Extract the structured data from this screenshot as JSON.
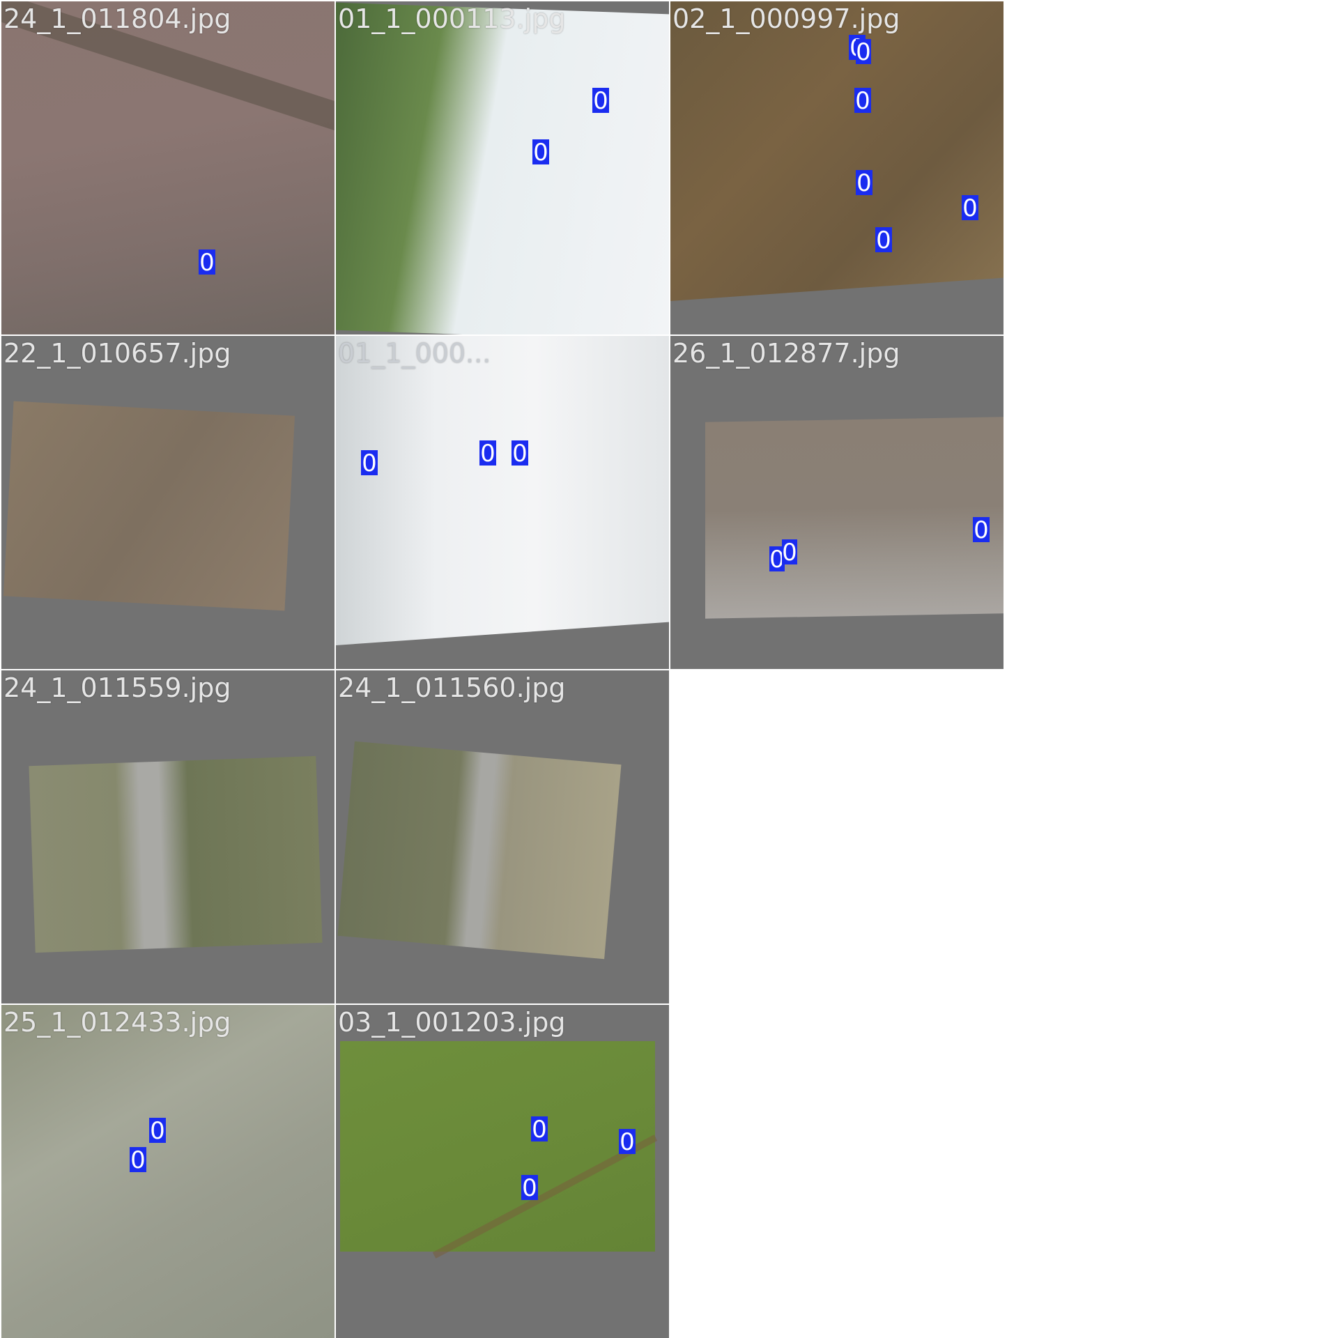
{
  "tiles": [
    {
      "filename": "24_1_011804.jpg",
      "labels": [
        "0"
      ]
    },
    {
      "filename": "01_1_000113.jpg",
      "labels": [
        "0",
        "0"
      ]
    },
    {
      "filename": "02_1_000997.jpg",
      "labels": [
        "0",
        "0",
        "0",
        "0",
        "0",
        "0"
      ]
    },
    {
      "filename": "22_1_010657.jpg",
      "labels": []
    },
    {
      "filename": "01_1_000...",
      "labels": [
        "0",
        "0",
        "0"
      ]
    },
    {
      "filename": "26_1_012877.jpg",
      "labels": [
        "0",
        "0",
        "0"
      ]
    },
    {
      "filename": "24_1_011559.jpg",
      "labels": []
    },
    {
      "filename": "24_1_011560.jpg",
      "labels": []
    },
    {
      "filename": "25_1_012433.jpg",
      "labels": [
        "0",
        "0"
      ]
    },
    {
      "filename": "03_1_001203.jpg",
      "labels": [
        "0",
        "0",
        "0"
      ]
    }
  ],
  "colors": {
    "background": "#727272",
    "box": "#1a2cf0",
    "label_text": "#ffffff"
  }
}
